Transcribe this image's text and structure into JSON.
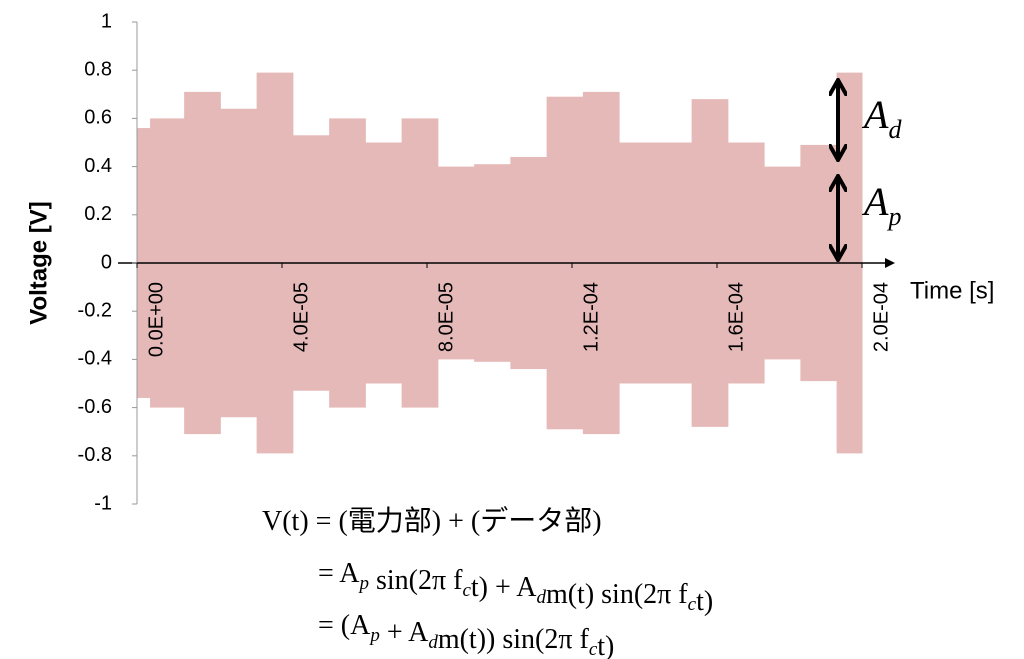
{
  "chart_data": {
    "type": "envelope",
    "ylabel": "Voltage [V]",
    "xlabel": "Time [s]",
    "ylim": [
      -1,
      1
    ],
    "yticks": [
      -1,
      -0.8,
      -0.6,
      -0.4,
      -0.2,
      0,
      0.2,
      0.4,
      0.6,
      0.8,
      1
    ],
    "xlim": [
      0,
      0.0002
    ],
    "xticks": [
      {
        "value": 0,
        "label": "0.0E+00"
      },
      {
        "value": 4e-05,
        "label": "4.0E-05"
      },
      {
        "value": 8e-05,
        "label": "8.0E-05"
      },
      {
        "value": 0.00012,
        "label": "1.2E-04"
      },
      {
        "value": 0.00016,
        "label": "1.6E-04"
      },
      {
        "value": 0.0002,
        "label": "2.0E-04"
      }
    ],
    "color": "#e6b9b9",
    "x": [
      0,
      3.6e-06,
      1.3e-05,
      2.3e-05,
      3.3e-05,
      4.3e-05,
      5.3e-05,
      6.3e-05,
      7.3e-05,
      8.3e-05,
      9.3e-05,
      0.000103,
      0.000113,
      0.000123,
      0.000133,
      0.000153,
      0.000163,
      0.000173,
      0.000183,
      0.000193
    ],
    "values": [
      0.56,
      0.6,
      0.71,
      0.64,
      0.79,
      0.53,
      0.6,
      0.5,
      0.6,
      0.4,
      0.41,
      0.44,
      0.69,
      0.71,
      0.5,
      0.68,
      0.5,
      0.4,
      0.49,
      0.79
    ],
    "annotations": {
      "ad": {
        "text": "A",
        "sub": "d"
      },
      "ap": {
        "text": "A",
        "sub": "p"
      }
    },
    "formula": [
      [
        {
          "text": "V(t) = (電力部) + (データ部)"
        }
      ],
      [
        {
          "text": "= A",
          "sub": "p"
        },
        {
          "text": " sin(2π f",
          "sub": "c"
        },
        {
          "text": "t) + A",
          "sub": "d"
        },
        {
          "text": "m(t) sin(2π f",
          "sub": "c"
        },
        {
          "text": "t)"
        }
      ],
      [
        {
          "text": "= (A",
          "sub": "p"
        },
        {
          "text": " + A",
          "sub": "d"
        },
        {
          "text": "m(t)) sin(2π f",
          "sub": "c"
        },
        {
          "text": "t)"
        }
      ]
    ]
  }
}
